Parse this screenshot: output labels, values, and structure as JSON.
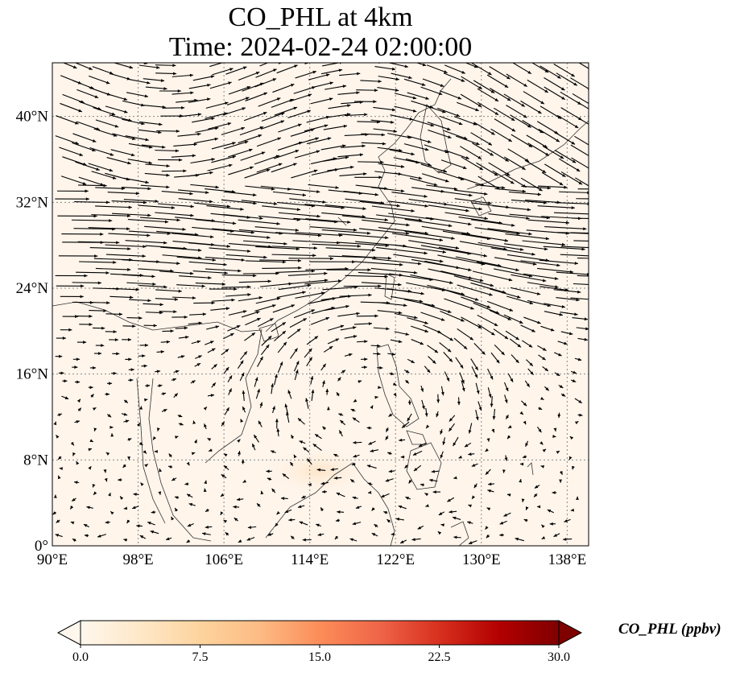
{
  "title": {
    "line1": "CO_PHL at 4km",
    "line2": "Time: 2024-02-24 02:00:00"
  },
  "map": {
    "lon_range": [
      90,
      140
    ],
    "lat_range": [
      0,
      45
    ],
    "lon_ticks": [
      "90°E",
      "98°E",
      "106°E",
      "114°E",
      "122°E",
      "130°E",
      "138°E"
    ],
    "lat_ticks": [
      "0°",
      "8°N",
      "16°N",
      "24°N",
      "32°N",
      "40°N"
    ],
    "gridlines": true,
    "background_color": "#fff5eb",
    "vector_color": "#000000",
    "field_max_region": "light orange tint near 8°N 114°E"
  },
  "colorbar": {
    "label": "CO_PHL (ppbv)",
    "ticks": [
      "0.0",
      "7.5",
      "15.0",
      "22.5",
      "30.0"
    ],
    "range": [
      0,
      30
    ],
    "extend": "both",
    "colormap": "OrRd",
    "colors": [
      "#fff7ec",
      "#fee8c8",
      "#fdd49e",
      "#fdbb84",
      "#fc8d59",
      "#ef6548",
      "#d7301f",
      "#b30000",
      "#7f0000"
    ]
  }
}
